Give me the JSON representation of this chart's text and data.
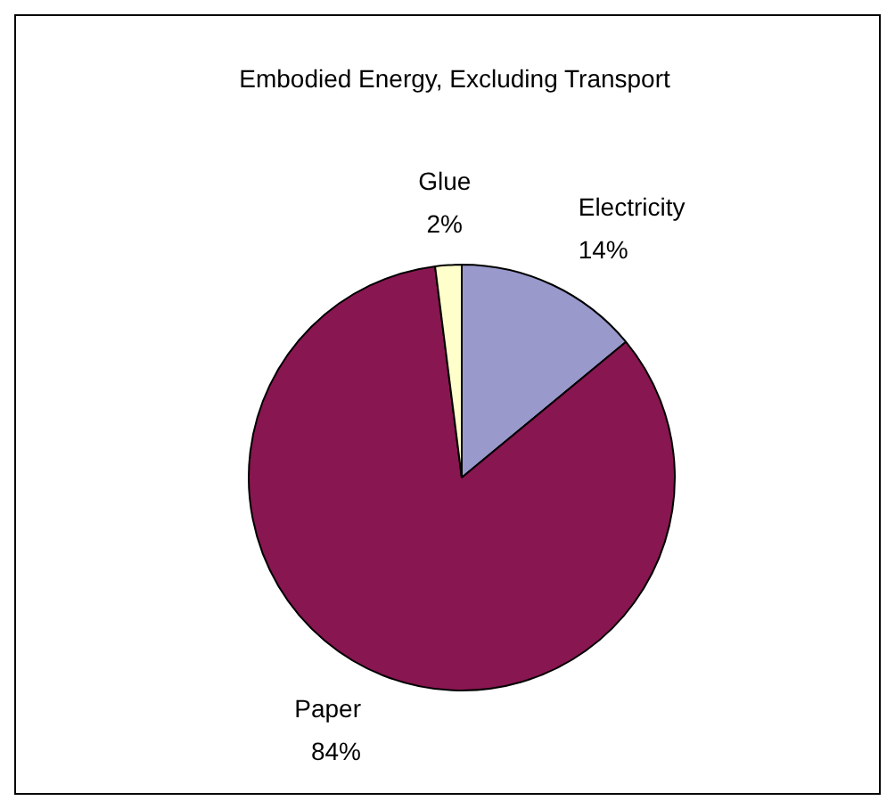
{
  "chart_data": {
    "type": "pie",
    "title": "Embodied Energy, Excluding Transport",
    "categories": [
      "Electricity",
      "Paper",
      "Glue"
    ],
    "values": [
      14,
      84,
      2
    ],
    "value_labels": [
      "14%",
      "84%",
      "2%"
    ],
    "colors": [
      "#9999cc",
      "#881650",
      "#ffffcc"
    ],
    "legend": false
  }
}
